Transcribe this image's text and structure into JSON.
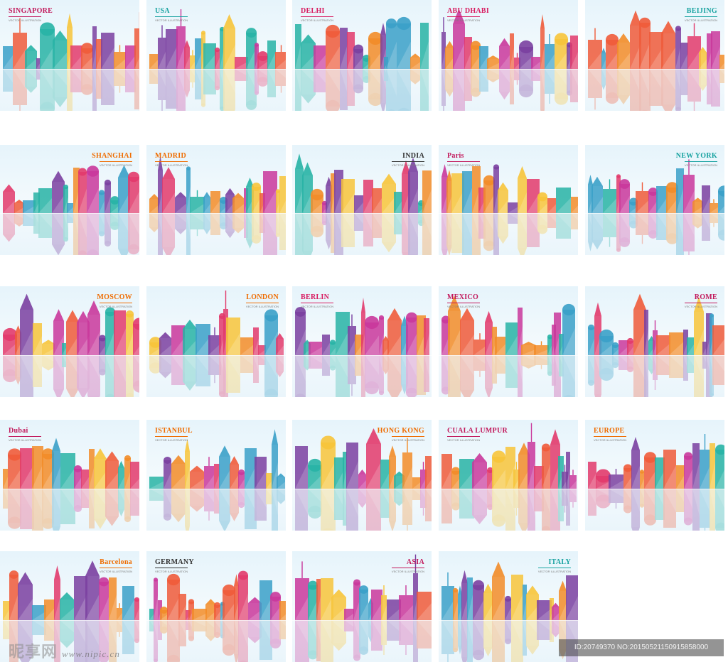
{
  "subtitle": "VECTOR ILLUSTRATION",
  "watermark": {
    "brand_cn": "昵享网",
    "url": "www.nipic.cn",
    "id_text": "ID:20749370 NO:20150521150915858000"
  },
  "palette": [
    "#e23a6b",
    "#f28c28",
    "#f7c43a",
    "#27b3a5",
    "#7a3fa0",
    "#c9379b",
    "#ef5b3a",
    "#3aa0c8"
  ],
  "tiles": [
    {
      "city": "SINGAPORE",
      "color": "#c2185b"
    },
    {
      "city": "USA",
      "color": "#17a2a0"
    },
    {
      "city": "DELHI",
      "color": "#d81b60"
    },
    {
      "city": "ABU DHABI",
      "color": "#d81b60"
    },
    {
      "city": "BEIJING",
      "color": "#17a2a0"
    },
    {
      "city": "SHANGHAI",
      "color": "#ef6c00"
    },
    {
      "city": "MADRID",
      "color": "#ef6c00"
    },
    {
      "city": "INDIA",
      "color": "#333333"
    },
    {
      "city": "Paris",
      "color": "#c2185b"
    },
    {
      "city": "NEW YORK",
      "color": "#17a2a0"
    },
    {
      "city": "MOSCOW",
      "color": "#ef6c00"
    },
    {
      "city": "LONDON",
      "color": "#ef6c00"
    },
    {
      "city": "BERLIN",
      "color": "#d81b60"
    },
    {
      "city": "MEXICO",
      "color": "#c2185b"
    },
    {
      "city": "ROME",
      "color": "#c2185b"
    },
    {
      "city": "Dubai",
      "color": "#c2185b"
    },
    {
      "city": "ISTANBUL",
      "color": "#ef6c00"
    },
    {
      "city": "HONG KONG",
      "color": "#ef6c00"
    },
    {
      "city": "CUALA LUMPUR",
      "color": "#c2185b"
    },
    {
      "city": "EUROPE",
      "color": "#ef6c00"
    },
    {
      "city": "Barcelona",
      "color": "#ef6c00"
    },
    {
      "city": "GERMANY",
      "color": "#333333"
    },
    {
      "city": "ASIA",
      "color": "#c2185b"
    },
    {
      "city": "ITALY",
      "color": "#17a2a0"
    }
  ]
}
